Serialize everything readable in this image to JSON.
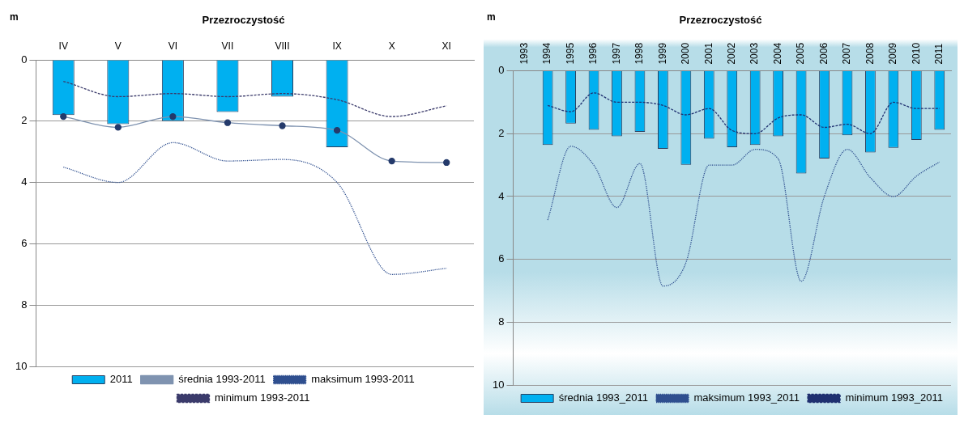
{
  "chart_data": [
    {
      "type": "bar",
      "title": "Przezroczystość",
      "ylabel": "m",
      "categories": [
        "IV",
        "V",
        "VI",
        "VII",
        "VIII",
        "IX",
        "X",
        "XI"
      ],
      "ylim": [
        10,
        0
      ],
      "yticks": [
        0,
        2,
        4,
        6,
        8,
        10
      ],
      "grid": "y",
      "legend": "bottom",
      "series": [
        {
          "name": "2011",
          "color": "#00b0f0",
          "values": [
            1.8,
            2.1,
            2.0,
            1.7,
            1.2,
            2.85,
            null,
            null
          ]
        },
        {
          "name": "średnia 1993-2011",
          "type": "line",
          "color": "#7f93b0",
          "marker": "circle",
          "line_style": "solid",
          "values": [
            1.85,
            2.2,
            1.85,
            2.05,
            2.15,
            2.3,
            3.3,
            3.35
          ]
        },
        {
          "name": "maksimum 1993-2011",
          "type": "line",
          "color": "#2f4f8f",
          "marker": "none",
          "line_style": "dotted",
          "values": [
            3.5,
            4.0,
            2.7,
            3.3,
            3.25,
            4.0,
            7.0,
            6.8
          ]
        },
        {
          "name": "minimum 1993-2011",
          "type": "line",
          "color": "#3b3b6b",
          "marker": "none",
          "line_style": "dashed",
          "values": [
            0.7,
            1.2,
            1.1,
            1.2,
            1.1,
            1.3,
            1.85,
            1.5
          ]
        }
      ]
    },
    {
      "type": "bar",
      "title": "Przezroczystość",
      "ylabel": "m",
      "categories": [
        "1993",
        "1994",
        "1995",
        "1996",
        "1997",
        "1998",
        "1999",
        "2000",
        "2001",
        "2002",
        "2003",
        "2004",
        "2005",
        "2006",
        "2007",
        "2008",
        "2009",
        "2010",
        "2011"
      ],
      "ylim": [
        10,
        0
      ],
      "yticks": [
        0,
        2,
        4,
        6,
        8,
        10
      ],
      "grid": "y",
      "legend": "bottom right",
      "series": [
        {
          "name": "średnia 1993_2011",
          "color": "#00b0f0",
          "values": [
            null,
            2.36,
            1.68,
            1.88,
            2.08,
            1.94,
            2.48,
            2.99,
            2.16,
            2.43,
            2.36,
            2.08,
            3.27,
            2.79,
            2.05,
            2.6,
            2.45,
            2.2,
            1.88
          ]
        },
        {
          "name": "maksimum 1993_2011",
          "type": "line",
          "color": "#2f4f8f",
          "marker": "none",
          "line_style": "dotted",
          "values": [
            null,
            4.75,
            2.4,
            3.0,
            4.35,
            2.95,
            6.85,
            6.1,
            3.0,
            3.0,
            2.5,
            2.8,
            6.7,
            4.0,
            2.5,
            3.4,
            4.0,
            3.35,
            2.9
          ]
        },
        {
          "name": "minimum 1993_2011",
          "type": "line",
          "color": "#1f3070",
          "marker": "none",
          "line_style": "dashed",
          "values": [
            null,
            1.1,
            1.3,
            0.7,
            1.0,
            1.0,
            1.1,
            1.4,
            1.2,
            1.9,
            2.0,
            1.5,
            1.4,
            1.8,
            1.7,
            2.0,
            1.0,
            1.2,
            1.2
          ]
        }
      ]
    }
  ]
}
